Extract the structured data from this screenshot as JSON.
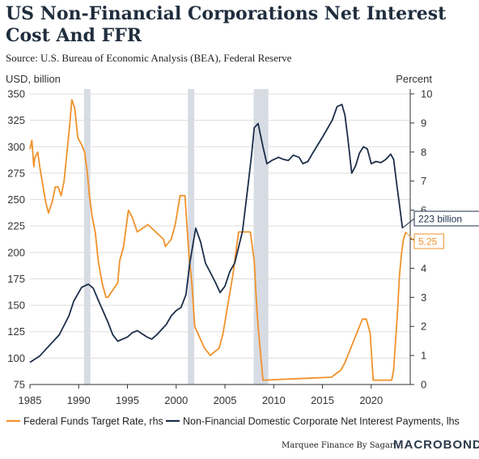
{
  "header": {
    "title": "US Non-Financial Corporations Net Interest Cost And FFR",
    "source": "Source: U.S. Bureau of Economic Analysis (BEA), Federal Reserve"
  },
  "footer": {
    "credit": "Marquee Finance By Sagar",
    "brand": "MACROBOND"
  },
  "colors": {
    "ffr": "#f0922a",
    "interest": "#1c2e4a",
    "recession": "#d7dbe3",
    "grid": "#dddddd",
    "axis": "#333333"
  },
  "chart_data": {
    "type": "line",
    "x_ticks": [
      "1985",
      "1990",
      "1995",
      "2000",
      "2005",
      "2010",
      "2015",
      "2020"
    ],
    "xlim": [
      1985,
      2024
    ],
    "left_axis": {
      "label": "USD, billion",
      "ticks": [
        "75",
        "100",
        "125",
        "150",
        "175",
        "200",
        "225",
        "250",
        "275",
        "300",
        "325",
        "350"
      ],
      "ylim": [
        75,
        350
      ]
    },
    "right_axis": {
      "label": "Percent",
      "ticks": [
        "0",
        "1",
        "2",
        "3",
        "4",
        "5",
        "6",
        "7",
        "8",
        "9",
        "10"
      ],
      "ylim": [
        0,
        10
      ]
    },
    "recessions": [
      [
        1990.55,
        1991.2
      ],
      [
        2001.2,
        2001.85
      ],
      [
        2007.95,
        2009.45
      ]
    ],
    "series": [
      {
        "name": "Federal Funds Target Rate, rhs",
        "axis": "right",
        "x": [
          1985,
          1985.2,
          1985.4,
          1985.5,
          1985.8,
          1986,
          1986.3,
          1986.6,
          1986.9,
          1987.3,
          1987.6,
          1987.9,
          1988.2,
          1988.5,
          1988.8,
          1989.1,
          1989.3,
          1989.6,
          1989.9,
          1990.3,
          1990.6,
          1990.9,
          1991.1,
          1991.4,
          1991.7,
          1992,
          1992.4,
          1992.8,
          1993,
          1994,
          1994.2,
          1994.6,
          1994.9,
          1995.1,
          1995.5,
          1996,
          1997.1,
          1998.7,
          1998.9,
          1999.5,
          1999.9,
          2000.4,
          2000.9,
          2001.1,
          2001.3,
          2001.6,
          2001.9,
          2002.9,
          2003.5,
          2004.4,
          2004.8,
          2005.3,
          2005.8,
          2006.4,
          2007.6,
          2007.8,
          2008,
          2008.2,
          2008.4,
          2008.9,
          2015.9,
          2016.9,
          2017.3,
          2017.6,
          2017.9,
          2018.2,
          2018.5,
          2018.8,
          2019.1,
          2019.5,
          2019.7,
          2019.9,
          2020.2,
          2022.1,
          2022.3,
          2022.5,
          2022.7,
          2022.9,
          2023.1,
          2023.3,
          2023.55
        ],
        "y": [
          8.1,
          8.4,
          7.5,
          7.8,
          8.0,
          7.5,
          6.9,
          6.3,
          5.9,
          6.3,
          6.8,
          6.8,
          6.5,
          7.0,
          8.0,
          9.0,
          9.8,
          9.5,
          8.5,
          8.25,
          8.0,
          7.25,
          6.5,
          5.75,
          5.25,
          4.25,
          3.5,
          3.0,
          3.0,
          3.5,
          4.25,
          4.75,
          5.5,
          6.0,
          5.75,
          5.25,
          5.5,
          5.0,
          4.75,
          5.0,
          5.5,
          6.5,
          6.5,
          5.5,
          4.5,
          3.5,
          2.0,
          1.25,
          1.0,
          1.25,
          1.75,
          2.75,
          3.75,
          5.25,
          5.25,
          4.75,
          4.25,
          3.0,
          2.0,
          0.15,
          0.25,
          0.5,
          0.75,
          1.0,
          1.25,
          1.5,
          1.75,
          2.0,
          2.25,
          2.25,
          2.0,
          1.75,
          0.15,
          0.15,
          0.5,
          1.5,
          2.5,
          3.75,
          4.5,
          5.0,
          5.25
        ]
      },
      {
        "name": "Non-Financial Domestic Corporate Net Interest Payments, lhs",
        "axis": "left",
        "x": [
          1985,
          1986,
          1987,
          1988,
          1989,
          1989.5,
          1990.3,
          1991,
          1991.5,
          1992,
          1993,
          1993.5,
          1994,
          1995,
          1995.5,
          1996,
          1997,
          1997.5,
          1998,
          1999,
          1999.5,
          2000,
          2000.5,
          2001,
          2001.4,
          2002,
          2002.5,
          2003,
          2004,
          2004.5,
          2005,
          2005.5,
          2006,
          2006.8,
          2007.3,
          2007.7,
          2008,
          2008.4,
          2008.9,
          2009.3,
          2009.8,
          2010.5,
          2011,
          2011.5,
          2012,
          2012.6,
          2013,
          2013.5,
          2014,
          2015,
          2016,
          2016.5,
          2017,
          2017.3,
          2017.6,
          2018,
          2018.4,
          2018.8,
          2019.2,
          2019.6,
          2020,
          2020.5,
          2021,
          2021.5,
          2022,
          2022.3,
          2022.6,
          2022.9,
          2023.2
        ],
        "y": [
          96,
          102,
          112,
          122,
          140,
          154,
          167,
          170,
          166,
          155,
          134,
          122,
          116,
          120,
          124,
          126,
          120,
          118,
          122,
          132,
          140,
          145,
          148,
          160,
          190,
          223,
          210,
          190,
          172,
          162,
          168,
          182,
          190,
          220,
          258,
          290,
          318,
          322,
          300,
          284,
          287,
          290,
          288,
          287,
          292,
          290,
          284,
          286,
          294,
          309,
          325,
          338,
          340,
          330,
          308,
          275,
          282,
          294,
          300,
          298,
          284,
          286,
          285,
          288,
          293,
          288,
          266,
          245,
          223
        ]
      }
    ],
    "callouts": [
      {
        "series": 1,
        "text": "223 billion"
      },
      {
        "series": 0,
        "text": "5.25"
      }
    ],
    "legend_position": "bottom"
  }
}
